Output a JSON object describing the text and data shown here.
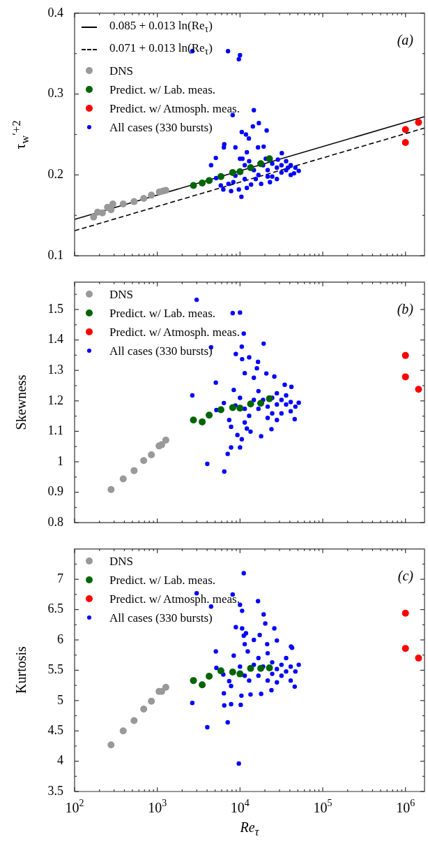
{
  "chart_data": [
    {
      "type": "scatter",
      "ylabel": "τ$_{w}$$^{′+2}$",
      "legend": "top left",
      "grid": false,
      "tick_labels": "y",
      "log": "x",
      "xlim": [
        100,
        1700000
      ],
      "ylim": [
        0.1,
        0.4
      ],
      "xticks": [
        {
          "value": 100,
          "label": null
        },
        {
          "value": 200,
          "label": null
        },
        {
          "value": 300,
          "label": null
        },
        {
          "value": 400,
          "label": null
        },
        {
          "value": 500,
          "label": null
        },
        {
          "value": 600,
          "label": null
        },
        {
          "value": 700,
          "label": null
        },
        {
          "value": 800,
          "label": null
        },
        {
          "value": 900,
          "label": null
        },
        {
          "value": 1000,
          "label": null
        },
        {
          "value": 2000,
          "label": null
        },
        {
          "value": 3000,
          "label": null
        },
        {
          "value": 4000,
          "label": null
        },
        {
          "value": 5000,
          "label": null
        },
        {
          "value": 6000,
          "label": null
        },
        {
          "value": 7000,
          "label": null
        },
        {
          "value": 8000,
          "label": null
        },
        {
          "value": 9000,
          "label": null
        },
        {
          "value": 10000,
          "label": null
        },
        {
          "value": 20000,
          "label": null
        },
        {
          "value": 30000,
          "label": null
        },
        {
          "value": 40000,
          "label": null
        },
        {
          "value": 50000,
          "label": null
        },
        {
          "value": 60000,
          "label": null
        },
        {
          "value": 70000,
          "label": null
        },
        {
          "value": 80000,
          "label": null
        },
        {
          "value": 90000,
          "label": null
        },
        {
          "value": 100000,
          "label": null
        },
        {
          "value": 200000,
          "label": null
        },
        {
          "value": 300000,
          "label": null
        },
        {
          "value": 400000,
          "label": null
        },
        {
          "value": 500000,
          "label": null
        },
        {
          "value": 600000,
          "label": null
        },
        {
          "value": 700000,
          "label": null
        },
        {
          "value": 800000,
          "label": null
        },
        {
          "value": 900000,
          "label": null
        },
        {
          "value": 1000000,
          "label": null
        }
      ],
      "yticks": [
        0.1,
        {
          "value": 0.15,
          "label": null
        },
        0.2,
        {
          "value": 0.25,
          "label": null
        },
        0.3,
        {
          "value": 0.35,
          "label": null
        },
        0.4
      ],
      "annotations": [
        "(a)"
      ],
      "series": [
        {
          "name": "0.085 + 0.013 ln(Re$_{τ}$)",
          "type": "line",
          "marker": "none",
          "line_style": "solid",
          "color": "#000000",
          "x": [
            100,
            1700000
          ],
          "values": [
            0.145,
            0.272
          ]
        },
        {
          "name": "0.071 + 0.013 ln(Re$_{τ}$)",
          "type": "line",
          "marker": "none",
          "line_style": "dashed",
          "color": "#000000",
          "x": [
            100,
            1700000
          ],
          "values": [
            0.131,
            0.258
          ]
        },
        {
          "name": "DNS",
          "type": "scatter",
          "marker": "circle",
          "color": "#999999",
          "x": [
            170,
            190,
            217,
            250,
            276,
            290,
            387,
            524,
            685,
            848,
            1060,
            1167,
            1268
          ],
          "values": [
            0.148,
            0.154,
            0.153,
            0.16,
            0.157,
            0.164,
            0.164,
            0.167,
            0.171,
            0.175,
            0.179,
            0.18,
            0.181
          ]
        },
        {
          "name": "Predict. w/ Lab. meas.",
          "type": "scatter",
          "marker": "circle",
          "color": "#006400",
          "x": [
            2735,
            3490,
            4235,
            5875,
            8150,
            10000,
            13430,
            17800,
            22700
          ],
          "values": [
            0.187,
            0.19,
            0.193,
            0.198,
            0.203,
            0.204,
            0.209,
            0.214,
            0.22
          ]
        },
        {
          "name": "Predict. w/ Atmosph. meas.",
          "type": "scatter",
          "marker": "circle",
          "color": "#ff0000",
          "x": [
            1000000,
            1000000,
            1440000
          ],
          "values": [
            0.256,
            0.24,
            0.265
          ]
        },
        {
          "name": "All cases (330 bursts)",
          "type": "scatter",
          "marker": "circle",
          "color": "#0000ff",
          "x": [
            2650,
            7160,
            9680,
            10000,
            14700,
            8150,
            16900,
            14300,
            21000,
            10500,
            11800,
            12800,
            6450,
            6380,
            8800,
            19300,
            16500,
            5100,
            4470,
            32000,
            5150,
            5860,
            6280,
            7250,
            7800,
            10400,
            9680,
            12100,
            8300,
            8800,
            11400,
            12900,
            14700,
            16700,
            19000,
            21600,
            24500,
            24500,
            27900,
            27900,
            31700,
            31700,
            36100,
            36100,
            41000,
            41000,
            46700,
            51300,
            23000,
            18000,
            13600,
            10700,
            12100,
            10000,
            11400,
            20500,
            28700,
            38000,
            45000,
            21600,
            15500
          ],
          "values": [
            0.353,
            0.353,
            0.343,
            0.348,
            0.28,
            0.274,
            0.264,
            0.26,
            0.255,
            0.253,
            0.25,
            0.245,
            0.238,
            0.234,
            0.234,
            0.235,
            0.234,
            0.221,
            0.212,
            0.227,
            0.196,
            0.187,
            0.182,
            0.189,
            0.18,
            0.173,
            0.182,
            0.184,
            0.191,
            0.199,
            0.195,
            0.217,
            0.206,
            0.2,
            0.212,
            0.206,
            0.214,
            0.198,
            0.209,
            0.195,
            0.212,
            0.203,
            0.217,
            0.206,
            0.212,
            0.2,
            0.209,
            0.205,
            0.191,
            0.189,
            0.188,
            0.22,
            0.228,
            0.22,
            0.212,
            0.22,
            0.219,
            0.209,
            0.202,
            0.198,
            0.195
          ]
        }
      ]
    },
    {
      "type": "scatter",
      "ylabel": "Skewness",
      "legend": "top left",
      "grid": false,
      "tick_labels": "y",
      "log": "x",
      "xlim": [
        100,
        1700000
      ],
      "ylim": [
        0.8,
        1.59
      ],
      "xticks": [
        {
          "value": 100,
          "label": null
        },
        {
          "value": 200,
          "label": null
        },
        {
          "value": 300,
          "label": null
        },
        {
          "value": 400,
          "label": null
        },
        {
          "value": 500,
          "label": null
        },
        {
          "value": 600,
          "label": null
        },
        {
          "value": 700,
          "label": null
        },
        {
          "value": 800,
          "label": null
        },
        {
          "value": 900,
          "label": null
        },
        {
          "value": 1000,
          "label": null
        },
        {
          "value": 2000,
          "label": null
        },
        {
          "value": 3000,
          "label": null
        },
        {
          "value": 4000,
          "label": null
        },
        {
          "value": 5000,
          "label": null
        },
        {
          "value": 6000,
          "label": null
        },
        {
          "value": 7000,
          "label": null
        },
        {
          "value": 8000,
          "label": null
        },
        {
          "value": 9000,
          "label": null
        },
        {
          "value": 10000,
          "label": null
        },
        {
          "value": 20000,
          "label": null
        },
        {
          "value": 30000,
          "label": null
        },
        {
          "value": 40000,
          "label": null
        },
        {
          "value": 50000,
          "label": null
        },
        {
          "value": 60000,
          "label": null
        },
        {
          "value": 70000,
          "label": null
        },
        {
          "value": 80000,
          "label": null
        },
        {
          "value": 90000,
          "label": null
        },
        {
          "value": 100000,
          "label": null
        },
        {
          "value": 200000,
          "label": null
        },
        {
          "value": 300000,
          "label": null
        },
        {
          "value": 400000,
          "label": null
        },
        {
          "value": 500000,
          "label": null
        },
        {
          "value": 600000,
          "label": null
        },
        {
          "value": 700000,
          "label": null
        },
        {
          "value": 800000,
          "label": null
        },
        {
          "value": 900000,
          "label": null
        },
        {
          "value": 1000000,
          "label": null
        }
      ],
      "yticks": [
        0.8,
        {
          "value": 0.85,
          "label": null
        },
        0.9,
        {
          "value": 0.95,
          "label": null
        },
        1,
        {
          "value": 1.05,
          "label": null
        },
        1.1,
        {
          "value": 1.15,
          "label": null
        },
        1.2,
        {
          "value": 1.25,
          "label": null
        },
        1.3,
        {
          "value": 1.35,
          "label": null
        },
        1.4,
        {
          "value": 1.45,
          "label": null
        },
        1.5,
        {
          "value": 1.55,
          "label": null
        }
      ],
      "annotations": [
        "(b)"
      ],
      "series": [
        {
          "name": "DNS",
          "type": "scatter",
          "marker": "circle",
          "color": "#999999",
          "x": [
            276,
            387,
            524,
            685,
            848,
            1050,
            1130,
            1268
          ],
          "values": [
            0.909,
            0.944,
            0.971,
            1.004,
            1.023,
            1.052,
            1.056,
            1.071
          ]
        },
        {
          "name": "Predict. w/ Lab. meas.",
          "type": "scatter",
          "marker": "circle",
          "color": "#006400",
          "x": [
            2735,
            3490,
            4235,
            5875,
            8150,
            10000,
            13430,
            17800,
            22700
          ],
          "values": [
            1.137,
            1.131,
            1.153,
            1.171,
            1.178,
            1.176,
            1.19,
            1.192,
            1.207
          ]
        },
        {
          "name": "Predict. w/ Atmosph. meas.",
          "type": "scatter",
          "marker": "circle",
          "color": "#ff0000",
          "x": [
            1000000,
            1000000,
            1440000
          ],
          "values": [
            1.349,
            1.279,
            1.238
          ]
        },
        {
          "name": "All cases (330 bursts)",
          "type": "scatter",
          "marker": "circle",
          "color": "#0000ff",
          "x": [
            2990,
            8150,
            10000,
            11100,
            4470,
            10500,
            19300,
            8900,
            10600,
            12900,
            16500,
            2650,
            5100,
            16000,
            11400,
            20800,
            26000,
            14700,
            34700,
            41800,
            8400,
            6380,
            5180,
            8800,
            7400,
            7800,
            9300,
            10500,
            10000,
            7800,
            7100,
            4020,
            6450,
            13400,
            18000,
            24000,
            45800,
            12100,
            11400,
            14700,
            16700,
            19000,
            21600,
            24500,
            24500,
            27900,
            27900,
            31700,
            31700,
            36100,
            36100,
            41000,
            41000,
            46700,
            51300,
            11400,
            12900,
            10000,
            16700,
            21600,
            27900
          ],
          "values": [
            1.532,
            1.488,
            1.49,
            1.421,
            1.376,
            1.378,
            1.388,
            1.354,
            1.337,
            1.343,
            1.328,
            1.218,
            1.26,
            1.307,
            1.291,
            1.29,
            1.28,
            1.276,
            1.253,
            1.246,
            1.236,
            1.193,
            1.17,
            1.185,
            1.137,
            1.115,
            1.088,
            1.074,
            1.047,
            1.047,
            1.026,
            0.993,
            0.968,
            1.099,
            1.084,
            1.107,
            1.14,
            1.109,
            1.129,
            1.203,
            1.174,
            1.203,
            1.181,
            1.21,
            1.159,
            1.188,
            1.225,
            1.203,
            1.159,
            1.188,
            1.218,
            1.196,
            1.166,
            1.181,
            1.194,
            1.174,
            1.151,
            1.21,
            1.232,
            1.144,
            1.137
          ]
        }
      ]
    },
    {
      "type": "scatter",
      "xlabel": "Re$_{τ}$",
      "ylabel": "Kurtosis",
      "legend": "top left",
      "grid": false,
      "log": "x",
      "xlim": [
        100,
        1700000
      ],
      "ylim": [
        3.5,
        7.5
      ],
      "xticks": [
        {
          "value": 100,
          "label": "10$^{2}$"
        },
        {
          "value": 200,
          "label": null
        },
        {
          "value": 300,
          "label": null
        },
        {
          "value": 400,
          "label": null
        },
        {
          "value": 500,
          "label": null
        },
        {
          "value": 600,
          "label": null
        },
        {
          "value": 700,
          "label": null
        },
        {
          "value": 800,
          "label": null
        },
        {
          "value": 900,
          "label": null
        },
        {
          "value": 1000,
          "label": "10$^{3}$"
        },
        {
          "value": 2000,
          "label": null
        },
        {
          "value": 3000,
          "label": null
        },
        {
          "value": 4000,
          "label": null
        },
        {
          "value": 5000,
          "label": null
        },
        {
          "value": 6000,
          "label": null
        },
        {
          "value": 7000,
          "label": null
        },
        {
          "value": 8000,
          "label": null
        },
        {
          "value": 9000,
          "label": null
        },
        {
          "value": 10000,
          "label": "10$^{4}$"
        },
        {
          "value": 20000,
          "label": null
        },
        {
          "value": 30000,
          "label": null
        },
        {
          "value": 40000,
          "label": null
        },
        {
          "value": 50000,
          "label": null
        },
        {
          "value": 60000,
          "label": null
        },
        {
          "value": 70000,
          "label": null
        },
        {
          "value": 80000,
          "label": null
        },
        {
          "value": 90000,
          "label": null
        },
        {
          "value": 100000,
          "label": "10$^{5}$"
        },
        {
          "value": 200000,
          "label": null
        },
        {
          "value": 300000,
          "label": null
        },
        {
          "value": 400000,
          "label": null
        },
        {
          "value": 500000,
          "label": null
        },
        {
          "value": 600000,
          "label": null
        },
        {
          "value": 700000,
          "label": null
        },
        {
          "value": 800000,
          "label": null
        },
        {
          "value": 900000,
          "label": null
        },
        {
          "value": 1000000,
          "label": "10$^{6}$"
        }
      ],
      "yticks": [
        3.5,
        {
          "value": 3.75,
          "label": null
        },
        4,
        {
          "value": 4.25,
          "label": null
        },
        4.5,
        {
          "value": 4.75,
          "label": null
        },
        5,
        {
          "value": 5.25,
          "label": null
        },
        5.5,
        {
          "value": 5.75,
          "label": null
        },
        6,
        {
          "value": 6.25,
          "label": null
        },
        6.5,
        {
          "value": 6.75,
          "label": null
        },
        7,
        {
          "value": 7.25,
          "label": null
        }
      ],
      "annotations": [
        "(c)"
      ],
      "series": [
        {
          "name": "DNS",
          "type": "scatter",
          "marker": "circle",
          "color": "#999999",
          "x": [
            276,
            387,
            524,
            685,
            848,
            1050,
            1130,
            1268
          ],
          "values": [
            4.27,
            4.5,
            4.67,
            4.86,
            4.99,
            5.15,
            5.15,
            5.22
          ]
        },
        {
          "name": "Predict. w/ Lab. meas.",
          "type": "scatter",
          "marker": "circle",
          "color": "#006400",
          "x": [
            2735,
            3490,
            4235,
            5875,
            8150,
            10000,
            13430,
            17800,
            22700
          ],
          "values": [
            5.33,
            5.26,
            5.4,
            5.49,
            5.47,
            5.44,
            5.53,
            5.53,
            5.54
          ]
        },
        {
          "name": "Predict. w/ Atmosph. meas.",
          "type": "scatter",
          "marker": "circle",
          "color": "#ff0000",
          "x": [
            1000000,
            1000000,
            1440000
          ],
          "values": [
            6.44,
            5.86,
            5.7
          ]
        },
        {
          "name": "All cases (330 bursts)",
          "type": "scatter",
          "marker": "circle",
          "color": "#0000ff",
          "x": [
            11100,
            2990,
            8150,
            16500,
            10000,
            4470,
            10600,
            19300,
            20200,
            8900,
            10600,
            26000,
            17300,
            11800,
            11100,
            27900,
            14700,
            11400,
            21300,
            41400,
            5100,
            8400,
            12400,
            5180,
            6280,
            7400,
            7800,
            10400,
            13400,
            18000,
            6380,
            2650,
            6450,
            7800,
            10200,
            4020,
            7100,
            9680,
            24000,
            45800,
            42600,
            14700,
            16700,
            19000,
            21600,
            24500,
            24500,
            27900,
            27900,
            31700,
            31700,
            36100,
            36100,
            41000,
            41000,
            46700,
            51300,
            11400,
            12900,
            10000,
            16700,
            21600
          ],
          "values": [
            7.1,
            6.77,
            6.75,
            6.64,
            6.58,
            6.55,
            6.48,
            6.42,
            6.27,
            6.21,
            6.19,
            6.19,
            6.08,
            6.11,
            6.07,
            5.99,
            6.0,
            5.93,
            5.93,
            5.89,
            5.81,
            5.74,
            5.81,
            5.54,
            5.43,
            5.32,
            5.24,
            5.08,
            5.1,
            5.11,
            5.12,
            4.96,
            4.92,
            4.94,
            4.93,
            4.56,
            4.64,
            3.96,
            5.17,
            5.23,
            5.87,
            5.59,
            5.41,
            5.56,
            5.33,
            5.63,
            5.44,
            5.52,
            5.3,
            5.59,
            5.41,
            5.7,
            5.48,
            5.56,
            5.33,
            5.48,
            5.59,
            5.41,
            5.33,
            5.56,
            5.7,
            5.78
          ]
        }
      ]
    }
  ]
}
